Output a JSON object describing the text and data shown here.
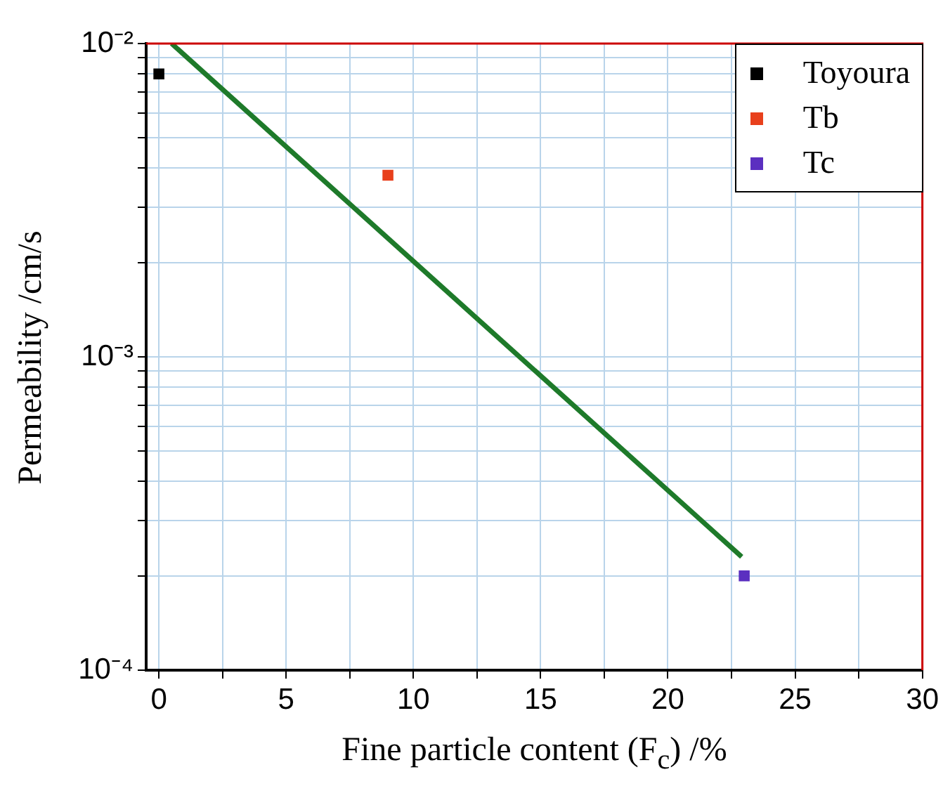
{
  "chart_data": {
    "type": "scatter",
    "xlabel": "Fine particle content (F$_{c}$) /%",
    "ylabel": "Permeability /cm/s",
    "xlim": [
      -0.5,
      30
    ],
    "ylim": [
      0.0001,
      0.01
    ],
    "log": "y",
    "xticks": [
      0,
      {
        "value": 2.5,
        "label": null
      },
      5,
      {
        "value": 7.5,
        "label": null
      },
      10,
      {
        "value": 12.5,
        "label": null
      },
      15,
      {
        "value": 17.5,
        "label": null
      },
      20,
      {
        "value": 22.5,
        "label": null
      },
      25,
      {
        "value": 27.5,
        "label": null
      },
      30
    ],
    "yticks": [
      {
        "value": 0.0001,
        "label": "10⁻⁴"
      },
      {
        "value": 0.0002,
        "label": null
      },
      {
        "value": 0.0003,
        "label": null
      },
      {
        "value": 0.0004,
        "label": null
      },
      {
        "value": 0.0005,
        "label": null
      },
      {
        "value": 0.0006,
        "label": null
      },
      {
        "value": 0.0007,
        "label": null
      },
      {
        "value": 0.0008,
        "label": null
      },
      {
        "value": 0.0009,
        "label": null
      },
      {
        "value": 0.001,
        "label": "10⁻³"
      },
      {
        "value": 0.002,
        "label": null
      },
      {
        "value": 0.003,
        "label": null
      },
      {
        "value": 0.004,
        "label": null
      },
      {
        "value": 0.005,
        "label": null
      },
      {
        "value": 0.006,
        "label": null
      },
      {
        "value": 0.007,
        "label": null
      },
      {
        "value": 0.008,
        "label": null
      },
      {
        "value": 0.009,
        "label": null
      },
      {
        "value": 0.01,
        "label": "10⁻²"
      }
    ],
    "grid": true,
    "legend": "top right",
    "marker": "square",
    "series": [
      {
        "name": "Toyoura",
        "color": "#000000",
        "x": [
          0
        ],
        "values": [
          0.008
        ]
      },
      {
        "name": "Tb",
        "color": "#e8401c",
        "x": [
          9
        ],
        "values": [
          0.0038
        ]
      },
      {
        "name": "Tc",
        "color": "#5b2fc0",
        "x": [
          23
        ],
        "values": [
          0.0002
        ]
      },
      {
        "type": "line",
        "color": "#1e7a2a",
        "x": [
          0.5,
          22.9
        ],
        "values": [
          0.01,
          0.00023
        ],
        "marker": "none"
      }
    ]
  }
}
